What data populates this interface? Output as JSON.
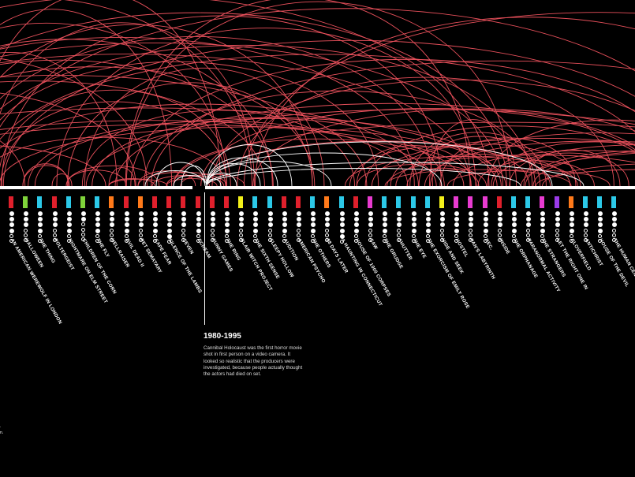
{
  "colors": {
    "background": "#000000",
    "arc": "#e8505b",
    "arc_current": "#ffffff",
    "axis": "#ffffff",
    "red": "#e0202c",
    "green": "#7fd33a",
    "cyan": "#2cc9e8",
    "orange": "#ff7a1a",
    "yellow": "#f3f01a",
    "magenta": "#e83bd0",
    "purple": "#9b3be8"
  },
  "movies": [
    {
      "title": "An American Werewolf in London",
      "color": "red",
      "dots": [
        1,
        1,
        1,
        1,
        0,
        0
      ]
    },
    {
      "title": "Halloween",
      "color": "green",
      "dots": [
        1,
        1,
        1,
        0,
        0,
        0
      ]
    },
    {
      "title": "The Thing",
      "color": "cyan",
      "dots": [
        1,
        1,
        1,
        1,
        0,
        0
      ]
    },
    {
      "title": "Poltergeist",
      "color": "red",
      "dots": [
        1,
        1,
        1,
        0,
        0,
        0
      ]
    },
    {
      "title": "Nightmare on Elm Street",
      "color": "cyan",
      "dots": [
        1,
        1,
        1,
        1,
        0,
        0
      ]
    },
    {
      "title": "Children of the Corn",
      "color": "green",
      "dots": [
        1,
        1,
        0,
        0,
        0,
        0
      ]
    },
    {
      "title": "The Fly",
      "color": "cyan",
      "dots": [
        1,
        1,
        1,
        1,
        0,
        0
      ]
    },
    {
      "title": "Hellraiser",
      "color": "orange",
      "dots": [
        1,
        1,
        1,
        0,
        0,
        0
      ]
    },
    {
      "title": "Evil Dead II",
      "color": "red",
      "dots": [
        1,
        1,
        1,
        1,
        0,
        0
      ]
    },
    {
      "title": "Pet Sematary",
      "color": "orange",
      "dots": [
        1,
        1,
        1,
        0,
        0,
        0
      ]
    },
    {
      "title": "Cape Fear",
      "color": "red",
      "dots": [
        1,
        1,
        1,
        1,
        0,
        0
      ]
    },
    {
      "title": "Silence of the Lambs",
      "color": "red",
      "dots": [
        1,
        1,
        1,
        1,
        1,
        0
      ]
    },
    {
      "title": "Seven",
      "color": "red",
      "dots": [
        1,
        1,
        1,
        0,
        0,
        0
      ]
    },
    {
      "title": "Scream",
      "color": "red",
      "dots": [
        1,
        1,
        1,
        1,
        0,
        0
      ]
    },
    {
      "title": "Funny Games",
      "color": "red",
      "dots": [
        1,
        1,
        1,
        0,
        0,
        0
      ]
    },
    {
      "title": "The Ring",
      "color": "red",
      "dots": [
        1,
        1,
        1,
        1,
        0,
        0
      ]
    },
    {
      "title": "Blair Witch Project",
      "color": "yellow",
      "dots": [
        1,
        1,
        1,
        0,
        0,
        0
      ]
    },
    {
      "title": "The Sixth Sense",
      "color": "cyan",
      "dots": [
        1,
        1,
        1,
        1,
        0,
        0
      ]
    },
    {
      "title": "Sleepy Hollow",
      "color": "cyan",
      "dots": [
        1,
        1,
        1,
        0,
        0,
        0
      ]
    },
    {
      "title": "Audition",
      "color": "red",
      "dots": [
        1,
        1,
        1,
        1,
        0,
        0
      ]
    },
    {
      "title": "American Psycho",
      "color": "red",
      "dots": [
        1,
        1,
        1,
        0,
        0,
        0
      ]
    },
    {
      "title": "The Others",
      "color": "cyan",
      "dots": [
        1,
        1,
        1,
        1,
        0,
        0
      ]
    },
    {
      "title": "28 Days Later",
      "color": "orange",
      "dots": [
        1,
        1,
        1,
        0,
        0,
        0
      ]
    },
    {
      "title": "A Haunting in Connecticut",
      "color": "cyan",
      "dots": [
        1,
        1,
        1,
        1,
        1,
        0
      ]
    },
    {
      "title": "House of 1000 Corpses",
      "color": "red",
      "dots": [
        1,
        1,
        1,
        1,
        0,
        0
      ]
    },
    {
      "title": "Saw",
      "color": "magenta",
      "dots": [
        1,
        1,
        1,
        0,
        0,
        0
      ]
    },
    {
      "title": "The Grudge",
      "color": "cyan",
      "dots": [
        1,
        1,
        1,
        1,
        0,
        0
      ]
    },
    {
      "title": "Shutter",
      "color": "cyan",
      "dots": [
        1,
        1,
        1,
        0,
        0,
        0
      ]
    },
    {
      "title": "The Eye",
      "color": "cyan",
      "dots": [
        1,
        1,
        1,
        1,
        0,
        0
      ]
    },
    {
      "title": "The Exorcism of Emily Rose",
      "color": "cyan",
      "dots": [
        1,
        1,
        1,
        1,
        0,
        0
      ]
    },
    {
      "title": "Hide and Seek",
      "color": "yellow",
      "dots": [
        1,
        1,
        1,
        0,
        0,
        0
      ]
    },
    {
      "title": "Hostel",
      "color": "magenta",
      "dots": [
        1,
        1,
        1,
        1,
        0,
        0
      ]
    },
    {
      "title": "Pan's Labyrinth",
      "color": "magenta",
      "dots": [
        1,
        1,
        1,
        0,
        0,
        0
      ]
    },
    {
      "title": "REC.",
      "color": "magenta",
      "dots": [
        1,
        1,
        1,
        1,
        0,
        0
      ]
    },
    {
      "title": "Inside",
      "color": "red",
      "dots": [
        1,
        1,
        1,
        0,
        0,
        0
      ]
    },
    {
      "title": "The Orphanage",
      "color": "cyan",
      "dots": [
        1,
        1,
        1,
        1,
        0,
        0
      ]
    },
    {
      "title": "Paranormal Activity",
      "color": "cyan",
      "dots": [
        1,
        1,
        1,
        0,
        0,
        0
      ]
    },
    {
      "title": "The Strangers",
      "color": "magenta",
      "dots": [
        1,
        1,
        1,
        1,
        0,
        0
      ]
    },
    {
      "title": "Let the Right One In",
      "color": "purple",
      "dots": [
        1,
        1,
        1,
        0,
        0,
        0
      ]
    },
    {
      "title": "Cloverfield",
      "color": "orange",
      "dots": [
        1,
        1,
        1,
        1,
        0,
        0
      ]
    },
    {
      "title": "Antichrist",
      "color": "cyan",
      "dots": [
        1,
        1,
        1,
        0,
        0,
        0
      ]
    },
    {
      "title": "House of the Devil",
      "color": "cyan",
      "dots": [
        1,
        1,
        1,
        1,
        0,
        0
      ]
    },
    {
      "title": "The Human Centipede",
      "color": "cyan",
      "dots": [
        1,
        1,
        1,
        0,
        0,
        0
      ]
    }
  ],
  "period": {
    "title": "1980-1995",
    "text": "Cannibal Holocaust was the first horror movie shot in first person on a video camera. It looked so realistic that the producers were investigated, because people actually thought the actors had died on set."
  },
  "edge_text": {
    "line1": ".",
    "line2": "n."
  }
}
